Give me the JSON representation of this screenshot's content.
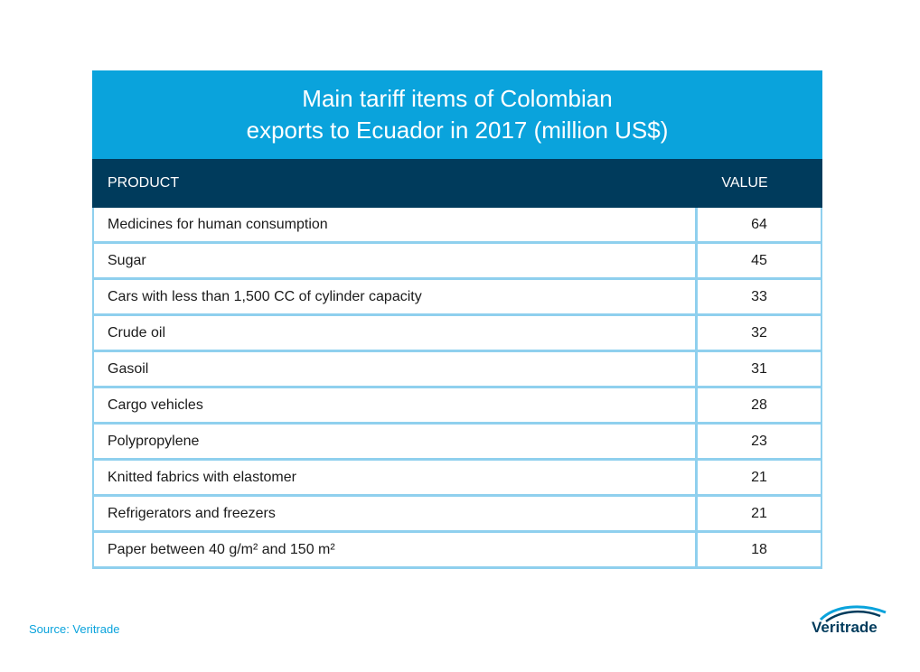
{
  "chart_data": {
    "type": "table",
    "title_lines": [
      "Main tariff items of Colombian",
      "exports to Ecuador in 2017 (million US$)"
    ],
    "columns": [
      "PRODUCT",
      "VALUE"
    ],
    "rows": [
      {
        "product": "Medicines for human consumption",
        "value": "64"
      },
      {
        "product": "Sugar",
        "value": "45"
      },
      {
        "product": "Cars with less than 1,500 CC of cylinder capacity",
        "value": "33"
      },
      {
        "product": "Crude oil",
        "value": "32"
      },
      {
        "product": "Gasoil",
        "value": "31"
      },
      {
        "product": "Cargo vehicles",
        "value": "28"
      },
      {
        "product": "Polypropylene",
        "value": "23"
      },
      {
        "product": "Knitted fabrics with elastomer",
        "value": "21"
      },
      {
        "product": "Refrigerators and freezers",
        "value": "21"
      },
      {
        "product": "Paper between 40 g/m² and 150 m²",
        "value": "18"
      }
    ]
  },
  "footer": {
    "source": "Source: Veritrade",
    "logo_text": "Veritrade"
  },
  "colors": {
    "title_bg": "#0aa3dc",
    "header_bg": "#003b5c",
    "grid_line": "#8fd0ee"
  }
}
